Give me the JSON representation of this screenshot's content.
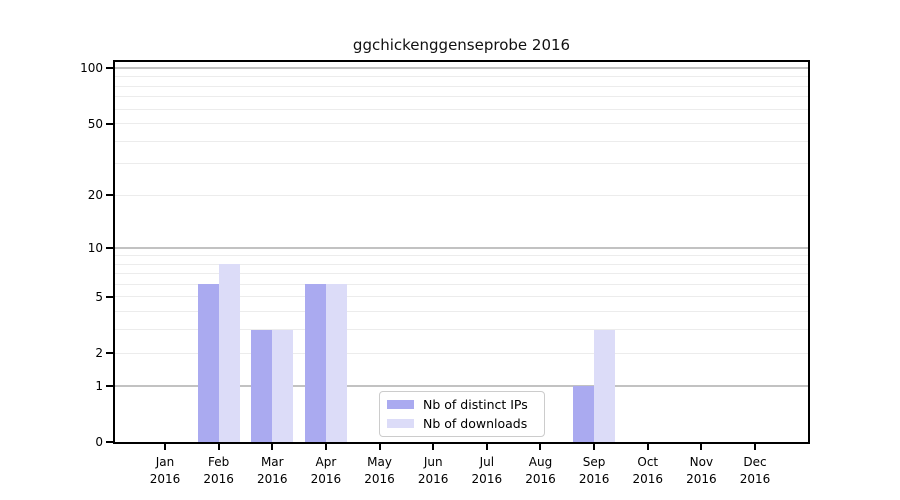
{
  "title": "ggchickenggenseprobe 2016",
  "chart_data": {
    "type": "bar",
    "title": "ggchickenggenseprobe 2016",
    "y_scale": "log1p",
    "categories": [
      "Jan",
      "Feb",
      "Mar",
      "Apr",
      "May",
      "Jun",
      "Jul",
      "Aug",
      "Sep",
      "Oct",
      "Nov",
      "Dec"
    ],
    "x_year": "2016",
    "series": [
      {
        "name": "Nb of distinct IPs",
        "color": "#aaaaf0",
        "values": [
          0,
          6,
          3,
          6,
          0,
          0,
          0,
          0,
          1,
          0,
          0,
          0
        ]
      },
      {
        "name": "Nb of downloads",
        "color": "#dcdcf8",
        "values": [
          0,
          8,
          3,
          6,
          0,
          0,
          0,
          0,
          3,
          0,
          0,
          0
        ]
      }
    ],
    "y_ticks": [
      0,
      1,
      2,
      5,
      10,
      20,
      50,
      100
    ],
    "ylim": [
      0,
      113
    ],
    "grid_major": [
      1,
      10,
      100
    ],
    "grid_minor": [
      2,
      3,
      4,
      5,
      6,
      7,
      8,
      9,
      20,
      30,
      40,
      50,
      60,
      70,
      80,
      90
    ],
    "xlabel": "",
    "ylabel": "",
    "legend_position": "lower center",
    "colors": {
      "distinct_ips": "#aaaaf0",
      "downloads": "#dcdcf8",
      "grid_major": "#c2c2c2",
      "grid_minor": "#ececec",
      "axis": "#000000"
    }
  }
}
